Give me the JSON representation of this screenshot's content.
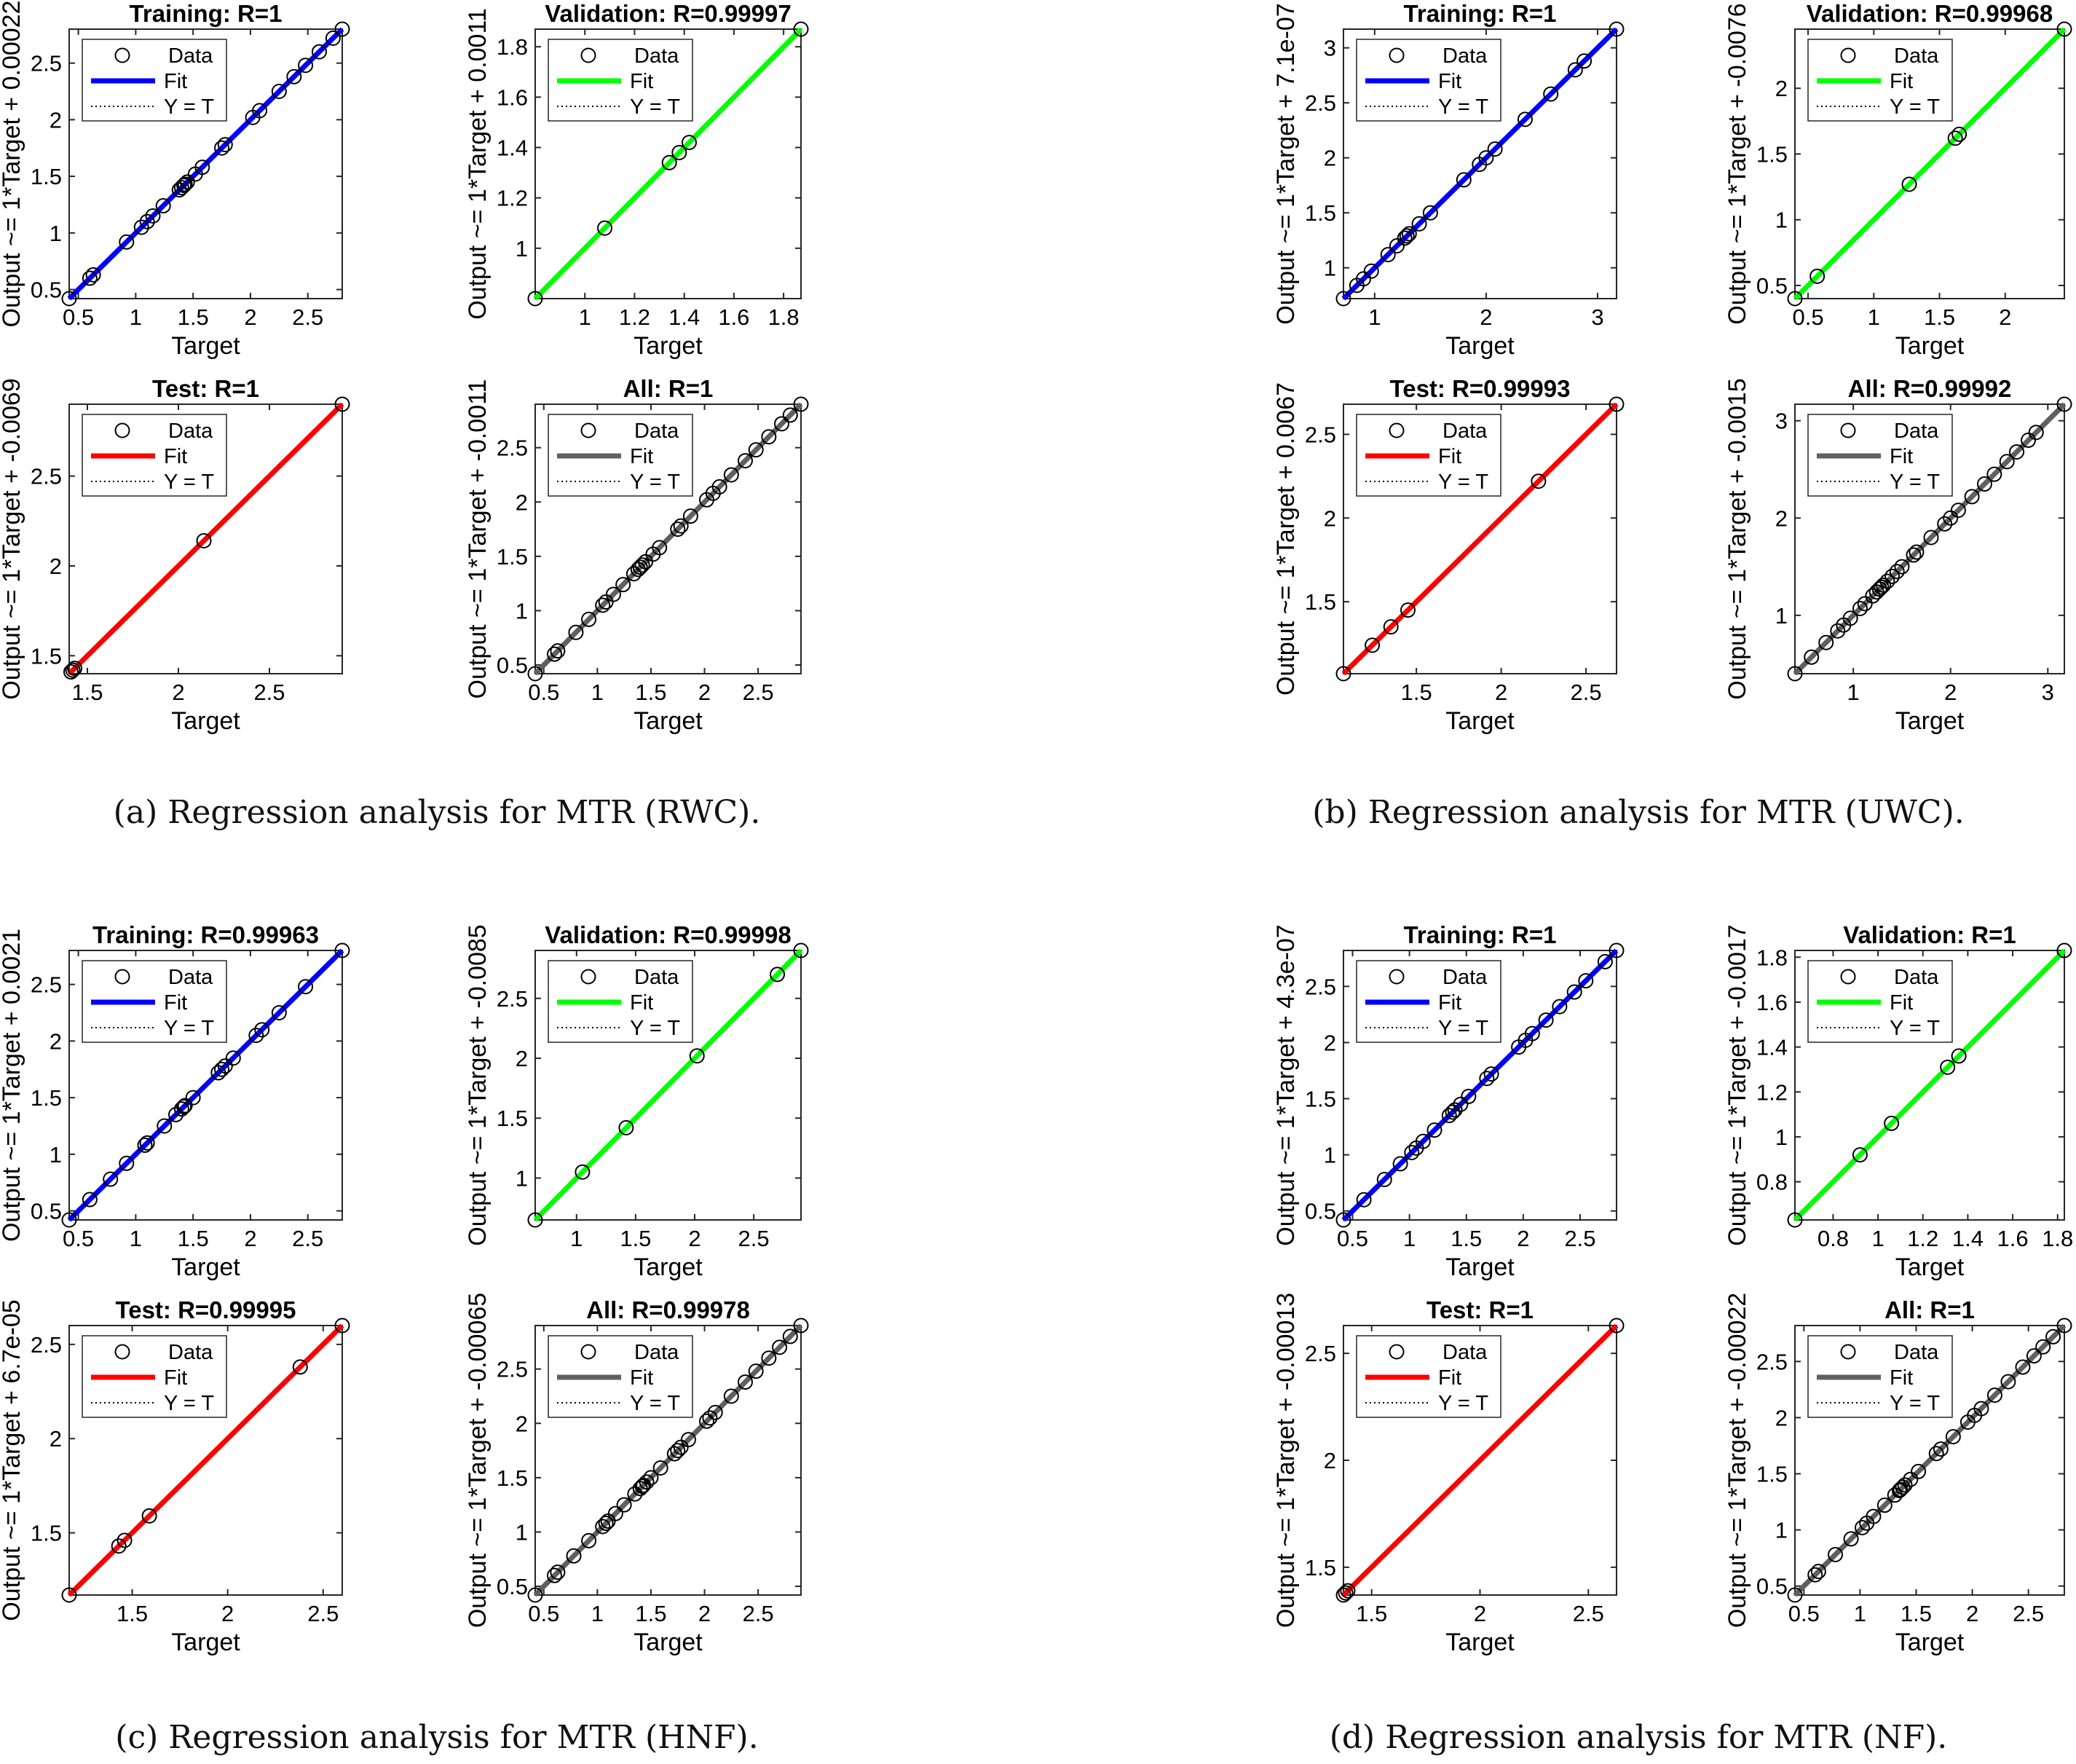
{
  "colors": {
    "training": "#0000ff",
    "validation": "#00ff00",
    "test": "#ff0000",
    "all": "#606060",
    "marker": "#000000",
    "background": "#ffffff"
  },
  "legend_labels": {
    "data": "Data",
    "fit": "Fit",
    "yt": "Y = T"
  },
  "figures": [
    {
      "caption": "(a) Regression analysis for MTR (RWC).",
      "panels": [
        {
          "key": "training",
          "title": "Training: R=1",
          "ylabel": "Output ~= 1*Target + 0.00022",
          "xlabel": "Target",
          "xlim": [
            0.42,
            2.8
          ],
          "ylim": [
            0.42,
            2.8
          ],
          "xticks": [
            0.5,
            1,
            1.5,
            2,
            2.5
          ],
          "yticks": [
            0.5,
            1,
            1.5,
            2,
            2.5
          ],
          "points": [
            0.42,
            0.6,
            0.63,
            0.92,
            1.05,
            1.1,
            1.15,
            1.24,
            1.38,
            1.4,
            1.42,
            1.43,
            1.45,
            1.52,
            1.58,
            1.75,
            1.78,
            2.02,
            2.08,
            2.25,
            2.38,
            2.48,
            2.6,
            2.72,
            2.8
          ]
        },
        {
          "key": "validation",
          "title": "Validation: R=0.99997",
          "ylabel": "Output ~= 1*Target + 0.0011",
          "xlabel": "Target",
          "xlim": [
            0.8,
            1.87
          ],
          "ylim": [
            0.8,
            1.87
          ],
          "xticks": [
            1,
            1.2,
            1.4,
            1.6,
            1.8
          ],
          "yticks": [
            1,
            1.2,
            1.4,
            1.6,
            1.8
          ],
          "points": [
            0.8,
            1.08,
            1.34,
            1.38,
            1.42,
            1.87
          ]
        },
        {
          "key": "test",
          "title": "Test: R=1",
          "ylabel": "Output ~= 1*Target + -0.0069",
          "xlabel": "Target",
          "xlim": [
            1.4,
            2.9
          ],
          "ylim": [
            1.4,
            2.9
          ],
          "xticks": [
            1.5,
            2,
            2.5
          ],
          "yticks": [
            1.5,
            2,
            2.5
          ],
          "points": [
            1.41,
            1.42,
            1.43,
            2.14,
            2.9
          ]
        },
        {
          "key": "all",
          "title": "All: R=1",
          "ylabel": "Output ~= 1*Target + -0.0011",
          "xlabel": "Target",
          "xlim": [
            0.42,
            2.9
          ],
          "ylim": [
            0.42,
            2.9
          ],
          "xticks": [
            0.5,
            1,
            1.5,
            2,
            2.5
          ],
          "yticks": [
            0.5,
            1,
            1.5,
            2,
            2.5
          ],
          "points": [
            0.42,
            0.6,
            0.63,
            0.8,
            0.92,
            1.05,
            1.08,
            1.15,
            1.24,
            1.34,
            1.38,
            1.4,
            1.42,
            1.45,
            1.52,
            1.58,
            1.75,
            1.78,
            1.87,
            2.02,
            2.08,
            2.14,
            2.25,
            2.38,
            2.48,
            2.6,
            2.72,
            2.8,
            2.9
          ]
        }
      ]
    },
    {
      "caption": "(b) Regression analysis for MTR (UWC).",
      "panels": [
        {
          "key": "training",
          "title": "Training: R=1",
          "ylabel": "Output ~= 1*Target + 7.1e-07",
          "xlabel": "Target",
          "xlim": [
            0.72,
            3.17
          ],
          "ylim": [
            0.72,
            3.17
          ],
          "xticks": [
            1,
            2,
            3
          ],
          "yticks": [
            1,
            1.5,
            2,
            2.5,
            3
          ],
          "points": [
            0.72,
            0.84,
            0.9,
            0.97,
            1.12,
            1.2,
            1.27,
            1.29,
            1.31,
            1.4,
            1.5,
            1.8,
            1.94,
            2.0,
            2.08,
            2.35,
            2.58,
            2.8,
            2.88,
            3.17
          ]
        },
        {
          "key": "validation",
          "title": "Validation: R=0.99968",
          "ylabel": "Output ~= 1*Target + -0.0076",
          "xlabel": "Target",
          "xlim": [
            0.4,
            2.45
          ],
          "ylim": [
            0.4,
            2.45
          ],
          "xticks": [
            0.5,
            1,
            1.5,
            2
          ],
          "yticks": [
            0.5,
            1,
            1.5,
            2
          ],
          "points": [
            0.4,
            0.57,
            1.27,
            1.65,
            1.62,
            2.45
          ]
        },
        {
          "key": "test",
          "title": "Test: R=0.99993",
          "ylabel": "Output ~= 1*Target + 0.0067",
          "xlabel": "Target",
          "xlim": [
            1.07,
            2.68
          ],
          "ylim": [
            1.07,
            2.68
          ],
          "xticks": [
            1.5,
            2,
            2.5
          ],
          "yticks": [
            1.5,
            2,
            2.5
          ],
          "points": [
            1.07,
            1.24,
            1.35,
            1.45,
            2.22,
            2.68
          ]
        },
        {
          "key": "all",
          "title": "All: R=0.99992",
          "ylabel": "Output ~= 1*Target + -0.0015",
          "xlabel": "Target",
          "xlim": [
            0.4,
            3.17
          ],
          "ylim": [
            0.4,
            3.17
          ],
          "xticks": [
            1,
            2,
            3
          ],
          "yticks": [
            1,
            2,
            3
          ],
          "points": [
            0.4,
            0.57,
            0.72,
            0.84,
            0.9,
            0.97,
            1.07,
            1.12,
            1.2,
            1.24,
            1.27,
            1.29,
            1.31,
            1.35,
            1.4,
            1.45,
            1.5,
            1.62,
            1.65,
            1.8,
            1.94,
            2.0,
            2.08,
            2.22,
            2.35,
            2.45,
            2.58,
            2.68,
            2.8,
            2.88,
            3.17
          ]
        }
      ]
    },
    {
      "caption": "(c) Regression analysis for MTR (HNF).",
      "panels": [
        {
          "key": "training",
          "title": "Training: R=0.99963",
          "ylabel": "Output ~= 1*Target + 0.0021",
          "xlabel": "Target",
          "xlim": [
            0.42,
            2.8
          ],
          "ylim": [
            0.42,
            2.8
          ],
          "xticks": [
            0.5,
            1,
            1.5,
            2,
            2.5
          ],
          "yticks": [
            0.5,
            1,
            1.5,
            2,
            2.5
          ],
          "points": [
            0.42,
            0.6,
            0.78,
            0.92,
            1.08,
            1.1,
            1.25,
            1.35,
            1.4,
            1.42,
            1.43,
            1.5,
            1.72,
            1.75,
            1.78,
            1.85,
            2.05,
            2.1,
            2.25,
            2.48,
            2.8
          ]
        },
        {
          "key": "validation",
          "title": "Validation: R=0.99998",
          "ylabel": "Output ~= 1*Target + -0.0085",
          "xlabel": "Target",
          "xlim": [
            0.65,
            2.9
          ],
          "ylim": [
            0.65,
            2.9
          ],
          "xticks": [
            1,
            1.5,
            2,
            2.5
          ],
          "yticks": [
            1,
            1.5,
            2,
            2.5
          ],
          "points": [
            0.65,
            1.05,
            1.42,
            2.02,
            2.7,
            2.9
          ]
        },
        {
          "key": "test",
          "title": "Test: R=0.99995",
          "ylabel": "Output ~= 1*Target + 6.7e-05",
          "xlabel": "Target",
          "xlim": [
            1.17,
            2.6
          ],
          "ylim": [
            1.17,
            2.6
          ],
          "xticks": [
            1.5,
            2,
            2.5
          ],
          "yticks": [
            1.5,
            2,
            2.5
          ],
          "points": [
            1.17,
            1.43,
            1.46,
            1.59,
            2.38,
            2.6
          ]
        },
        {
          "key": "all",
          "title": "All: R=0.99978",
          "ylabel": "Output ~= 1*Target + -0.00065",
          "xlabel": "Target",
          "xlim": [
            0.42,
            2.9
          ],
          "ylim": [
            0.42,
            2.9
          ],
          "xticks": [
            0.5,
            1,
            1.5,
            2,
            2.5
          ],
          "yticks": [
            0.5,
            1,
            1.5,
            2,
            2.5
          ],
          "points": [
            0.42,
            0.6,
            0.63,
            0.78,
            0.92,
            1.05,
            1.08,
            1.1,
            1.17,
            1.25,
            1.35,
            1.4,
            1.42,
            1.43,
            1.46,
            1.5,
            1.59,
            1.72,
            1.75,
            1.78,
            1.85,
            2.02,
            2.05,
            2.1,
            2.25,
            2.38,
            2.48,
            2.6,
            2.7,
            2.8,
            2.9
          ]
        }
      ]
    },
    {
      "caption": "(d) Regression analysis for MTR (NF).",
      "panels": [
        {
          "key": "training",
          "title": "Training: R=1",
          "ylabel": "Output ~= 1*Target + 4.3e-07",
          "xlabel": "Target",
          "xlim": [
            0.42,
            2.82
          ],
          "ylim": [
            0.42,
            2.82
          ],
          "xticks": [
            0.5,
            1,
            1.5,
            2,
            2.5
          ],
          "yticks": [
            0.5,
            1,
            1.5,
            2,
            2.5
          ],
          "points": [
            0.42,
            0.6,
            0.78,
            0.92,
            1.02,
            1.06,
            1.12,
            1.22,
            1.35,
            1.38,
            1.4,
            1.45,
            1.52,
            1.68,
            1.72,
            1.96,
            2.02,
            2.08,
            2.2,
            2.32,
            2.45,
            2.55,
            2.72,
            2.82
          ]
        },
        {
          "key": "validation",
          "title": "Validation: R=1",
          "ylabel": "Output ~= 1*Target + -0.0017",
          "xlabel": "Target",
          "xlim": [
            0.63,
            1.83
          ],
          "ylim": [
            0.63,
            1.83
          ],
          "xticks": [
            0.8,
            1,
            1.2,
            1.4,
            1.6,
            1.8
          ],
          "yticks": [
            0.8,
            1,
            1.2,
            1.4,
            1.6,
            1.8
          ],
          "points": [
            0.63,
            0.92,
            1.06,
            1.31,
            1.36,
            1.83
          ]
        },
        {
          "key": "test",
          "title": "Test: R=1",
          "ylabel": "Output ~= 1*Target + -0.00013",
          "xlabel": "Target",
          "xlim": [
            1.37,
            2.63
          ],
          "ylim": [
            1.37,
            2.63
          ],
          "xticks": [
            1.5,
            2,
            2.5
          ],
          "yticks": [
            1.5,
            2,
            2.5
          ],
          "points": [
            1.37,
            1.38,
            1.39,
            2.63
          ]
        },
        {
          "key": "all",
          "title": "All: R=1",
          "ylabel": "Output ~= 1*Target + -0.00022",
          "xlabel": "Target",
          "xlim": [
            0.42,
            2.82
          ],
          "ylim": [
            0.42,
            2.82
          ],
          "xticks": [
            0.5,
            1,
            1.5,
            2,
            2.5
          ],
          "yticks": [
            0.5,
            1,
            1.5,
            2,
            2.5
          ],
          "points": [
            0.42,
            0.6,
            0.63,
            0.78,
            0.92,
            1.02,
            1.06,
            1.12,
            1.22,
            1.31,
            1.35,
            1.36,
            1.38,
            1.4,
            1.45,
            1.52,
            1.68,
            1.72,
            1.83,
            1.96,
            2.02,
            2.08,
            2.2,
            2.32,
            2.45,
            2.55,
            2.63,
            2.72,
            2.82
          ]
        }
      ]
    }
  ],
  "chart_data": {
    "type": "scatter",
    "description_note": "Four figures of MATLAB-style regression plots; each with Training, Validation, Test and All panels (Data circles, Fit line, Y = T reference).",
    "figures_ref": "figures"
  }
}
